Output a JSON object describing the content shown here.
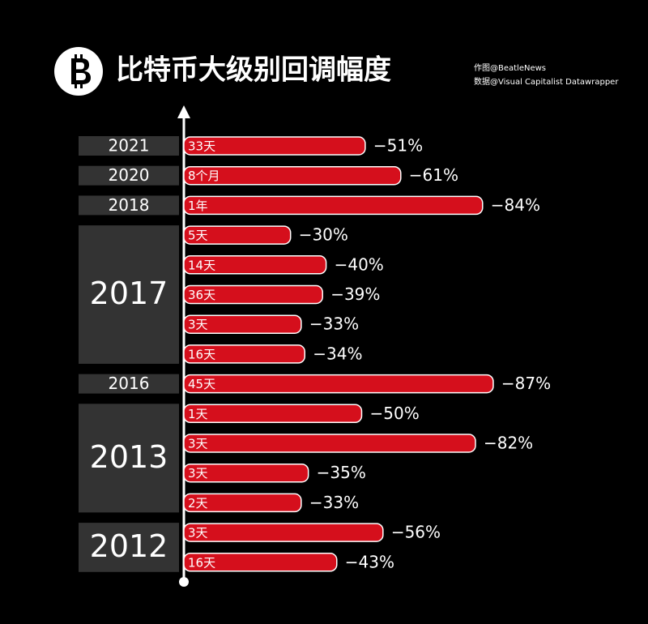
{
  "chart_data": {
    "type": "bar",
    "orientation": "horizontal",
    "title": "比特币大级别回调幅度",
    "notes": [
      "作图@BeatleNews",
      "数据@Visual Capitalist Datawrapper"
    ],
    "categories": [
      "2021",
      "2020",
      "2018",
      "2017",
      null,
      null,
      null,
      null,
      "2016",
      "2013",
      null,
      null,
      null,
      "2012",
      null
    ],
    "durations": [
      "33天",
      "8个月",
      "1年",
      "5天",
      "14天",
      "36天",
      "3天",
      "16天",
      "45天",
      "1天",
      "3天",
      "3天",
      "2天",
      "3天",
      "16天"
    ],
    "values": [
      -51,
      -61,
      -84,
      -30,
      -40,
      -39,
      -33,
      -34,
      -87,
      -50,
      -82,
      -35,
      -33,
      -56,
      -43
    ],
    "value_labels": [
      "−51%",
      "−61%",
      "−84%",
      "−30%",
      "−40%",
      "−39%",
      "−33%",
      "−34%",
      "−87%",
      "−50%",
      "−82%",
      "−35%",
      "−33%",
      "−56%",
      "−43%"
    ],
    "color": "#d50f1c"
  }
}
